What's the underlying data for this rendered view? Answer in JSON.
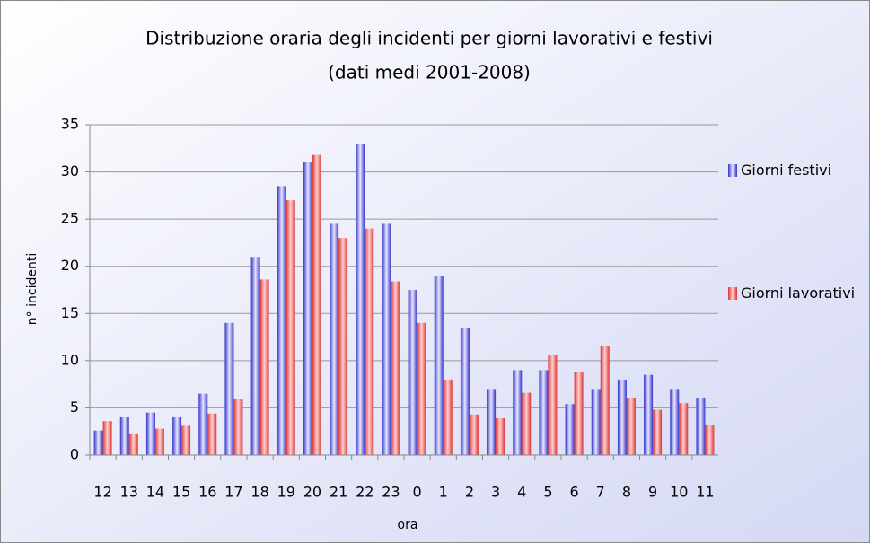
{
  "chart_data": {
    "type": "bar",
    "title": "Distribuzione oraria degli incidenti per giorni lavorativi e festivi",
    "subtitle": "(dati medi 2001-2008)",
    "x_label": "ora",
    "y_label": "n° incidenti",
    "categories": [
      "12",
      "13",
      "14",
      "15",
      "16",
      "17",
      "18",
      "19",
      "20",
      "21",
      "22",
      "23",
      "0",
      "1",
      "2",
      "3",
      "4",
      "5",
      "6",
      "7",
      "8",
      "9",
      "10",
      "11"
    ],
    "series": [
      {
        "name": "Giorni festivi",
        "color": "#6666ee",
        "values": [
          2.6,
          4,
          4.5,
          4,
          6.5,
          14,
          21,
          28.5,
          31,
          24.5,
          33,
          24.5,
          17.5,
          19,
          13.5,
          7,
          9,
          9,
          5.4,
          7,
          8,
          8.5,
          7,
          6
        ]
      },
      {
        "name": "Giorni lavorativi",
        "color": "#ee5555",
        "values": [
          3.6,
          2.3,
          2.8,
          3.1,
          4.4,
          5.9,
          18.6,
          27,
          31.8,
          23,
          24,
          18.4,
          14,
          8,
          4.3,
          3.9,
          6.6,
          10.6,
          8.8,
          11.6,
          6,
          4.8,
          5.5,
          3.2
        ]
      }
    ],
    "ylim": [
      0,
      35
    ],
    "yticks": [
      0,
      5,
      10,
      15,
      20,
      25,
      30,
      35
    ],
    "grid": true
  }
}
